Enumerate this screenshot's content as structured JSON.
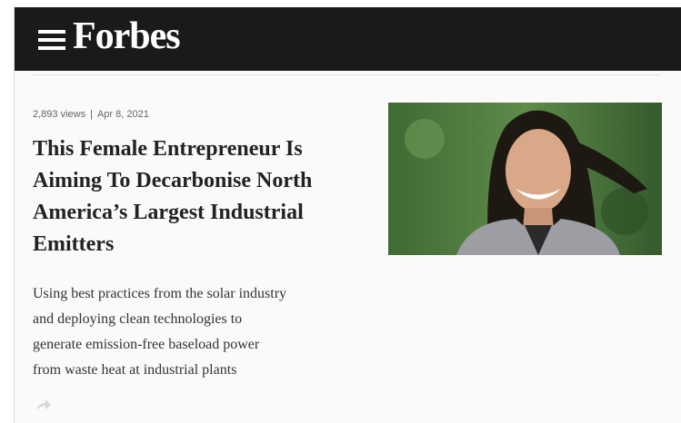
{
  "header": {
    "logo": "Forbes"
  },
  "article": {
    "views": "2,893 views",
    "separator": "|",
    "date": "Apr 8, 2021",
    "title_lines": [
      "This Female Entrepreneur Is",
      "Aiming To Decarbonise North",
      "America’s Largest Industrial",
      "Emitters"
    ],
    "description_lines": [
      "Using best practices from the solar industry",
      "and deploying clean technologies to",
      "generate emission-free baseload power",
      "from waste heat at industrial plants"
    ]
  }
}
